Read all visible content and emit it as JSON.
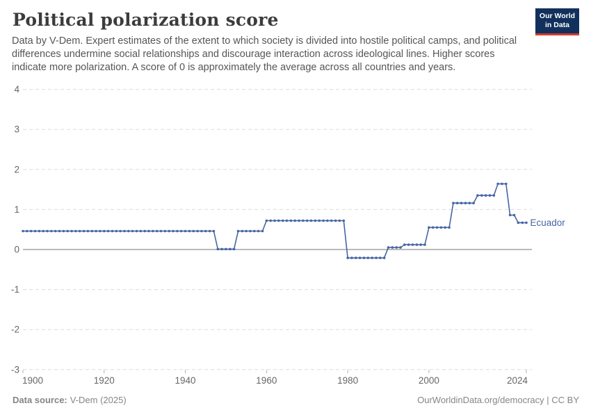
{
  "header": {
    "title": "Political polarization score",
    "subtitle": "Data by V-Dem. Expert estimates of the extent to which society is divided into hostile political camps, and political differences undermine social relationships and discourage interaction across ideological lines. Higher scores indicate more polarization. A score of 0 is approximately the average across all countries and years.",
    "logo": {
      "line1": "Our World",
      "line2": "in Data"
    }
  },
  "chart_data": {
    "type": "line",
    "title": "Political polarization score",
    "xlabel": "",
    "ylabel": "",
    "xlim": [
      1900,
      2024
    ],
    "ylim": [
      -3,
      4
    ],
    "xticks": [
      1900,
      1920,
      1940,
      1960,
      1980,
      2000,
      2024
    ],
    "yticks": [
      4,
      3,
      2,
      1,
      0,
      -1,
      -2,
      -3
    ],
    "grid": "horizontal-dashed",
    "zero_line": true,
    "marker": "circle-every-year",
    "legend_position": "end-of-line",
    "series": [
      {
        "name": "Ecuador",
        "color": "#4666a5",
        "step_segments": [
          {
            "from": 1900,
            "to": 1947,
            "value": 0.46
          },
          {
            "from": 1948,
            "to": 1952,
            "value": 0.01
          },
          {
            "from": 1953,
            "to": 1959,
            "value": 0.46
          },
          {
            "from": 1960,
            "to": 1979,
            "value": 0.72
          },
          {
            "from": 1980,
            "to": 1989,
            "value": -0.21
          },
          {
            "from": 1990,
            "to": 1993,
            "value": 0.05
          },
          {
            "from": 1994,
            "to": 1999,
            "value": 0.12
          },
          {
            "from": 2000,
            "to": 2005,
            "value": 0.55
          },
          {
            "from": 2006,
            "to": 2011,
            "value": 1.16
          },
          {
            "from": 2012,
            "to": 2016,
            "value": 1.35
          },
          {
            "from": 2017,
            "to": 2019,
            "value": 1.64
          },
          {
            "from": 2020,
            "to": 2021,
            "value": 0.86
          },
          {
            "from": 2022,
            "to": 2024,
            "value": 0.67
          }
        ]
      }
    ]
  },
  "footer": {
    "source_label": "Data source:",
    "source_value": "V-Dem (2025)",
    "rights": "OurWorldinData.org/democracy | CC BY"
  },
  "colors": {
    "line": "#4666a5",
    "grid": "#dcdcdc",
    "zero_line": "#a3a3a3",
    "axis_text": "#666666",
    "tick_mark": "#b0b0b0",
    "title": "#3c3c3c",
    "subtitle": "#555555",
    "footer": "#858585",
    "logo_bg": "#12305c",
    "logo_accent": "#d63c2b"
  }
}
